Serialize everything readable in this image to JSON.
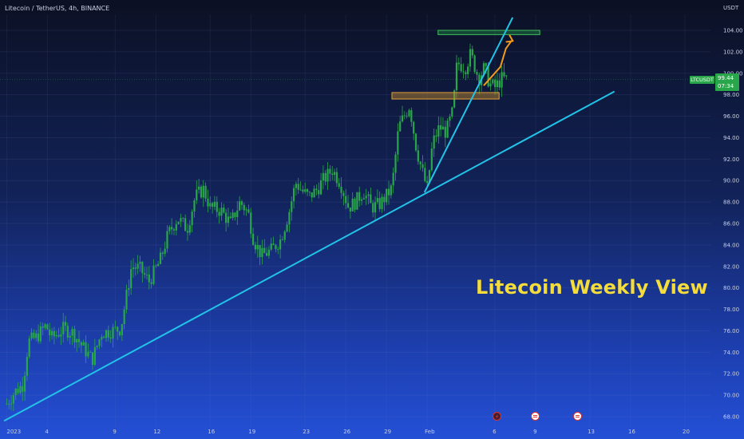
{
  "header": {
    "symbol_title": "Litecoin / TetherUS, 4h, BINANCE",
    "price_axis_unit": "USDT"
  },
  "overlay": {
    "title": "Litecoin Weekly View"
  },
  "last_price": {
    "symbol_tag": "LTCUSDT",
    "value": "99.44",
    "countdown": "07:34",
    "color": "#2aa64a"
  },
  "events": [
    {
      "name": "event-bolt-icon",
      "icon": "lightning-icon"
    },
    {
      "name": "event-flag-icon",
      "icon": "us-flag-icon"
    },
    {
      "name": "event-flag-icon",
      "icon": "us-flag-icon"
    }
  ],
  "chart_data": {
    "type": "candlestick",
    "ylim": [
      67.5,
      106
    ],
    "yticks": [
      68,
      70,
      72,
      74,
      76,
      78,
      80,
      82,
      84,
      86,
      88,
      90,
      92,
      94,
      96,
      98,
      100,
      102,
      104
    ],
    "ytick_labels": [
      "68.00",
      "70.00",
      "72.00",
      "74.00",
      "76.00",
      "78.00",
      "80.00",
      "82.00",
      "84.00",
      "86.00",
      "88.00",
      "90.00",
      "92.00",
      "94.00",
      "96.00",
      "98.00",
      "100.00",
      "102.00",
      "104.00"
    ],
    "xticks": [
      "2023",
      "4",
      "9",
      "12",
      "16",
      "19",
      "23",
      "26",
      "29",
      "Feb",
      "6",
      "9",
      "13",
      "16",
      "20"
    ],
    "xtick_day_index": [
      0,
      3,
      8,
      11,
      15,
      18,
      22,
      25,
      28,
      31,
      36,
      39,
      43,
      46,
      50
    ],
    "x_range_days": [
      -0.2,
      52
    ],
    "up_color": "#2aa64a",
    "down_color": "#2aa64a",
    "close_anchor_points": [
      [
        0,
        69.2
      ],
      [
        0.6,
        70.3
      ],
      [
        1.2,
        71.0
      ],
      [
        1.6,
        75.0
      ],
      [
        2.2,
        75.4
      ],
      [
        2.9,
        76.5
      ],
      [
        3.3,
        75.3
      ],
      [
        4.2,
        76.2
      ],
      [
        4.9,
        75.8
      ],
      [
        5.6,
        74.5
      ],
      [
        6.3,
        73.3
      ],
      [
        7.0,
        75.8
      ],
      [
        7.8,
        76.0
      ],
      [
        8.4,
        76.2
      ],
      [
        8.8,
        79.0
      ],
      [
        9.2,
        82.0
      ],
      [
        9.8,
        81.8
      ],
      [
        10.5,
        80.6
      ],
      [
        11.3,
        82.5
      ],
      [
        11.9,
        85.0
      ],
      [
        12.6,
        86.5
      ],
      [
        13.3,
        85.5
      ],
      [
        13.9,
        88.5
      ],
      [
        14.5,
        89.2
      ],
      [
        15.0,
        87.5
      ],
      [
        15.8,
        87.2
      ],
      [
        16.5,
        86.0
      ],
      [
        17.2,
        88.0
      ],
      [
        17.8,
        87.0
      ],
      [
        18.2,
        84.5
      ],
      [
        18.8,
        83.0
      ],
      [
        19.5,
        83.5
      ],
      [
        20.2,
        84.5
      ],
      [
        20.8,
        87.0
      ],
      [
        21.3,
        89.8
      ],
      [
        21.8,
        89.0
      ],
      [
        22.3,
        88.5
      ],
      [
        22.9,
        89.2
      ],
      [
        23.3,
        90.0
      ],
      [
        24.0,
        91.0
      ],
      [
        24.6,
        89.8
      ],
      [
        25.2,
        87.5
      ],
      [
        25.7,
        88.0
      ],
      [
        26.3,
        89.0
      ],
      [
        26.9,
        87.5
      ],
      [
        27.5,
        87.8
      ],
      [
        28.0,
        88.6
      ],
      [
        28.4,
        89.3
      ],
      [
        28.9,
        95.0
      ],
      [
        29.3,
        96.0
      ],
      [
        29.7,
        97.0
      ],
      [
        30.2,
        93.0
      ],
      [
        30.6,
        91.0
      ],
      [
        31.0,
        89.2
      ],
      [
        31.4,
        93.5
      ],
      [
        31.9,
        95.0
      ],
      [
        32.4,
        94.5
      ],
      [
        32.9,
        96.5
      ],
      [
        33.2,
        101.0
      ],
      [
        33.8,
        100.5
      ],
      [
        34.2,
        101.8
      ],
      [
        34.8,
        99.5
      ],
      [
        35.2,
        100.5
      ],
      [
        35.6,
        99.0
      ],
      [
        36.0,
        98.7
      ],
      [
        36.5,
        99.5
      ],
      [
        36.9,
        99.44
      ]
    ],
    "levels": [
      {
        "name": "resistance-zone-green",
        "y_low": 103.6,
        "y_high": 104.0,
        "x_start": 31.8,
        "x_end": 39.3,
        "fill": "rgba(40,170,80,0.35)",
        "stroke": "#3fbf5a"
      },
      {
        "name": "support-zone-orange",
        "y_low": 97.6,
        "y_high": 98.2,
        "x_start": 28.4,
        "x_end": 36.3,
        "fill": "rgba(200,140,40,0.45)",
        "stroke": "#e3a13a"
      }
    ],
    "trendlines": [
      {
        "name": "long-term-trendline",
        "x1": -0.2,
        "y1": 67.6,
        "x2": 44.8,
        "y2": 98.3,
        "color": "#22c3e8"
      },
      {
        "name": "steep-trendline",
        "x1": 30.8,
        "y1": 88.9,
        "x2": 37.3,
        "y2": 105.2,
        "color": "#22c3e8"
      }
    ],
    "projection_arrow": {
      "name": "projection-arrow",
      "points": [
        [
          35.2,
          98.9
        ],
        [
          36.4,
          100.6
        ],
        [
          36.8,
          102.3
        ],
        [
          37.2,
          103.0
        ]
      ],
      "color": "#f39a1c"
    },
    "current_price_line": 99.44
  }
}
